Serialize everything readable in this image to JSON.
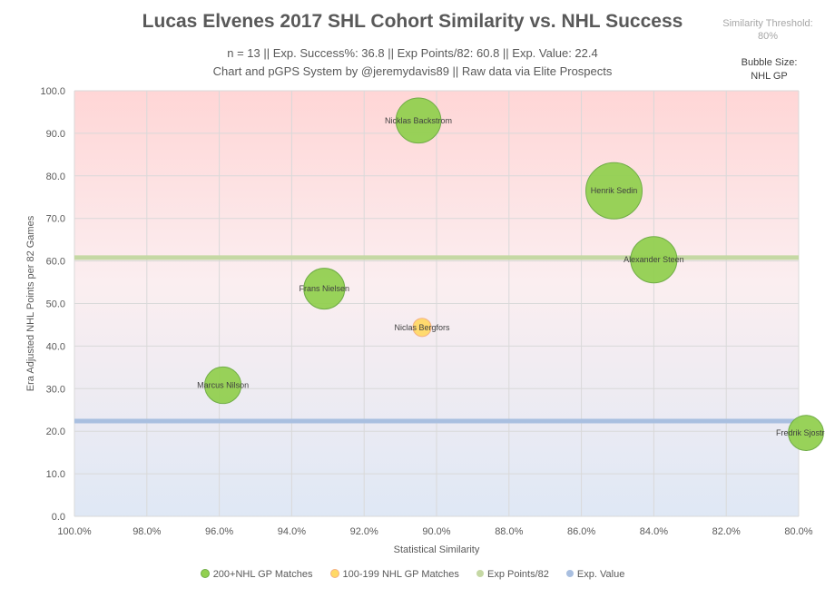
{
  "header": {
    "title": "Lucas Elvenes 2017 SHL Cohort Similarity vs. NHL Success",
    "subtitle1": "n = 13 || Exp. Success%: 36.8 || Exp Points/82: 60.8 || Exp. Value: 22.4",
    "subtitle2": "Chart and pGPS System by @jeremydavis89 || Raw data via Elite Prospects",
    "threshold_label": "Similarity Threshold:",
    "threshold_value": "80%",
    "bubble_size_label": "Bubble Size:",
    "bubble_size_value": "NHL GP"
  },
  "colors": {
    "green_fill": "#92d050",
    "green_stroke": "#70ad47",
    "yellow_fill": "#ffd966",
    "yellow_stroke": "#f4b183",
    "exp_points_line": "#c5d8a4",
    "exp_value_line": "#a9bfe0",
    "bg_top": "#ffd6d6",
    "bg_bottom": "#dfe8f5",
    "grid": "#d9d9d9"
  },
  "chart_data": {
    "type": "scatter",
    "xlabel": "Statistical Similarity",
    "ylabel": "Era Adjusted NHL Points per 82 Games",
    "xlim": [
      100,
      80
    ],
    "ylim": [
      0,
      100
    ],
    "x_ticks": [
      "100.0%",
      "98.0%",
      "96.0%",
      "94.0%",
      "92.0%",
      "90.0%",
      "88.0%",
      "86.0%",
      "84.0%",
      "82.0%",
      "80.0%"
    ],
    "y_ticks": [
      "0.0",
      "10.0",
      "20.0",
      "30.0",
      "40.0",
      "50.0",
      "60.0",
      "70.0",
      "80.0",
      "90.0",
      "100.0"
    ],
    "grid": true,
    "legend_position": "bottom",
    "reference_lines": [
      {
        "name": "Exp Points/82",
        "y": 60.8
      },
      {
        "name": "Exp. Value",
        "y": 22.4
      }
    ],
    "series": [
      {
        "name": "200+NHL GP Matches",
        "points": [
          {
            "label": "Nicklas Backstrom",
            "x": 90.5,
            "y": 93.0,
            "size": 850
          },
          {
            "label": "Henrik Sedin",
            "x": 85.1,
            "y": 76.5,
            "size": 1330
          },
          {
            "label": "Alexander Steen",
            "x": 84.0,
            "y": 60.3,
            "size": 900
          },
          {
            "label": "Frans Nielsen",
            "x": 93.1,
            "y": 53.5,
            "size": 700
          },
          {
            "label": "Marcus Nilson",
            "x": 95.9,
            "y": 30.8,
            "size": 560
          },
          {
            "label": "Fredrik Sjostrom",
            "x": 79.8,
            "y": 19.6,
            "size": 520
          }
        ]
      },
      {
        "name": "100-199 NHL GP Matches",
        "points": [
          {
            "label": "Niclas Bergfors",
            "x": 90.4,
            "y": 44.4,
            "size": 140
          }
        ]
      }
    ]
  },
  "legend": {
    "items": [
      {
        "label": "200+NHL GP Matches"
      },
      {
        "label": "100-199 NHL GP Matches"
      },
      {
        "label": "Exp Points/82"
      },
      {
        "label": "Exp. Value"
      }
    ]
  }
}
